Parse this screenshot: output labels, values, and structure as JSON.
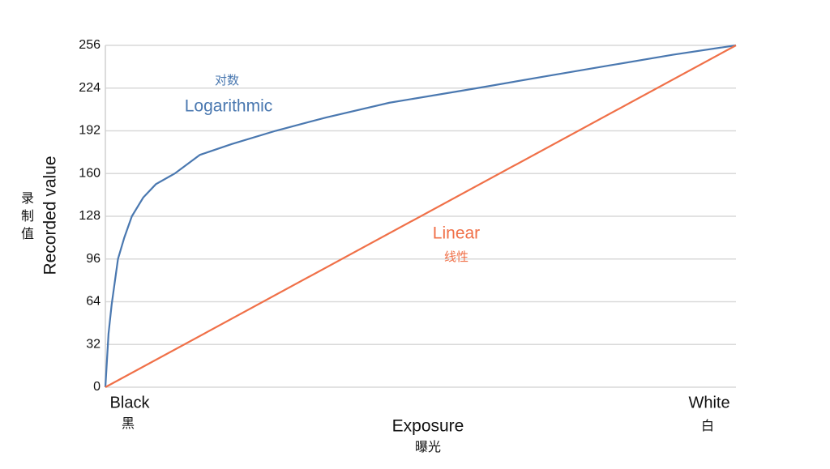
{
  "chart_data": {
    "type": "line",
    "xlabel": "Exposure",
    "xlabel_sub": "曝光",
    "ylabel": "Recorded value",
    "ylabel_sub": [
      "录",
      "制",
      "值"
    ],
    "xlim": [
      0,
      1
    ],
    "xticks": [
      {
        "value": 0,
        "label": "Black"
      },
      {
        "value": 1,
        "label": "White"
      }
    ],
    "xtick_sublabels": [
      "黑",
      "白"
    ],
    "ylim": [
      0,
      256
    ],
    "yticks": [
      0,
      32,
      64,
      96,
      128,
      160,
      192,
      224,
      256
    ],
    "grid": true,
    "series": [
      {
        "name": "Logarithmic",
        "name_sub": "对数",
        "color": "#4a78b0",
        "x": [
          0,
          0.005,
          0.01,
          0.02,
          0.03,
          0.042,
          0.06,
          0.08,
          0.11,
          0.15,
          0.2,
          0.27,
          0.35,
          0.45,
          0.59,
          0.7,
          0.8,
          0.9,
          1
        ],
        "values": [
          0,
          40,
          62,
          96,
          112,
          128,
          142,
          152,
          160,
          174,
          182,
          192,
          202,
          213,
          224,
          233,
          241,
          249,
          256
        ]
      },
      {
        "name": "Linear",
        "name_sub": "线性",
        "color": "#f07048",
        "x": [
          0,
          1
        ],
        "values": [
          0,
          256
        ]
      }
    ]
  }
}
